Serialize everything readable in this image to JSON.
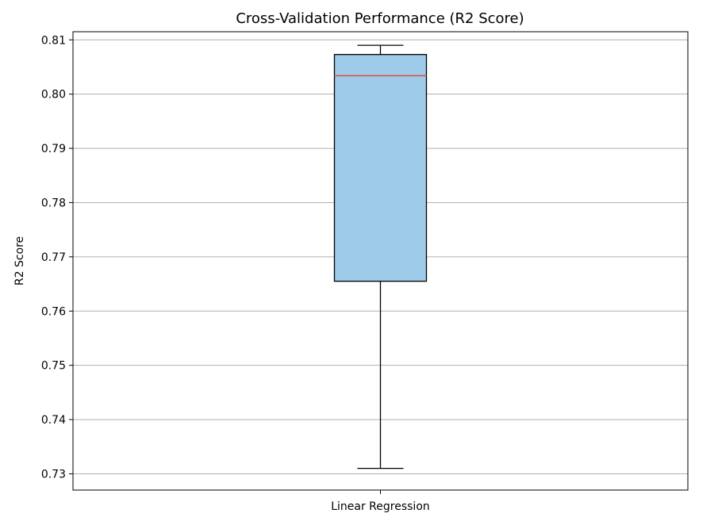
{
  "chart_data": {
    "type": "box",
    "title": "Cross-Validation Performance (R2 Score)",
    "xlabel": "",
    "ylabel": "R2 Score",
    "categories": [
      "Linear Regression"
    ],
    "ylim": [
      0.727,
      0.8115
    ],
    "yticks": [
      "0.73",
      "0.74",
      "0.75",
      "0.76",
      "0.77",
      "0.78",
      "0.79",
      "0.80",
      "0.81"
    ],
    "grid": "y",
    "boxes": [
      {
        "category": "Linear Regression",
        "whisker_low": 0.731,
        "q1": 0.7655,
        "median": 0.8034,
        "q3": 0.8073,
        "whisker_high": 0.809
      }
    ],
    "colors": {
      "box_fill": "#9ecbea",
      "median": "#d6524a",
      "grid": "#b0b0b0",
      "axes": "#000000"
    }
  }
}
